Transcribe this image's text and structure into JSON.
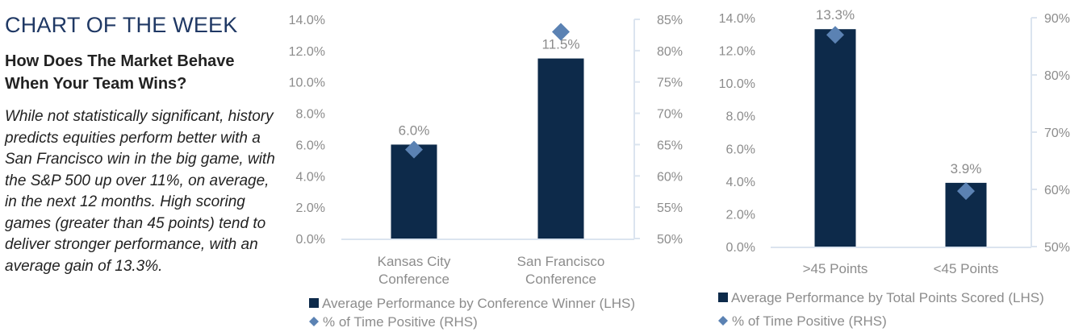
{
  "kicker": "CHART OF THE WEEK",
  "headline": "How Does The Market Behave When Your Team Wins?",
  "body_text": "While not statistically significant, history predicts equities perform better with a San Francisco win in the big game, with the S&P 500 up over 11%, on average, in the next 12 months. High scoring games (greater than 45 points) tend to deliver stronger performance, with an average gain of 13.3%.",
  "colors": {
    "bar": "#0d2a4a",
    "marker": "#5b82b3",
    "axis": "#dbe4ef",
    "text": "#8c8c8c",
    "kicker": "#1f3864"
  },
  "chart_data": [
    {
      "type": "bar",
      "categories": [
        [
          "Kansas City",
          "Conference"
        ],
        [
          "San Francisco",
          "Conference"
        ]
      ],
      "series": [
        {
          "name": "Average Performance by Conference Winner (LHS)",
          "type": "bar",
          "axis": "left",
          "values": [
            6.0,
            11.5
          ],
          "data_labels": [
            "6.0%",
            "11.5%"
          ]
        },
        {
          "name": "% of Time Positive (RHS)",
          "type": "scatter",
          "marker": "diamond",
          "axis": "right",
          "values": [
            64.2,
            83.0
          ]
        }
      ],
      "y_left": {
        "lim": [
          0,
          14
        ],
        "ticks": [
          "0.0%",
          "2.0%",
          "4.0%",
          "6.0%",
          "8.0%",
          "10.0%",
          "12.0%",
          "14.0%"
        ]
      },
      "y_right": {
        "lim": [
          50,
          85
        ],
        "ticks": [
          "50%",
          "55%",
          "60%",
          "65%",
          "70%",
          "75%",
          "80%",
          "85%"
        ]
      },
      "legend": "bottom",
      "grid": false
    },
    {
      "type": "bar",
      "categories": [
        [
          ">45 Points"
        ],
        [
          "<45 Points"
        ]
      ],
      "series": [
        {
          "name": "Average Performance by Total Points Scored (LHS)",
          "type": "bar",
          "axis": "left",
          "values": [
            13.3,
            3.9
          ],
          "data_labels": [
            "13.3%",
            "3.9%"
          ]
        },
        {
          "name": "% of Time Positive (RHS)",
          "type": "scatter",
          "marker": "diamond",
          "axis": "right",
          "values": [
            87.0,
            59.7
          ]
        }
      ],
      "y_left": {
        "lim": [
          0,
          14
        ],
        "ticks": [
          "0.0%",
          "2.0%",
          "4.0%",
          "6.0%",
          "8.0%",
          "10.0%",
          "12.0%",
          "14.0%"
        ]
      },
      "y_right": {
        "lim": [
          50,
          90
        ],
        "ticks": [
          "50%",
          "60%",
          "70%",
          "80%",
          "90%"
        ]
      },
      "legend": "bottom",
      "grid": false
    }
  ]
}
